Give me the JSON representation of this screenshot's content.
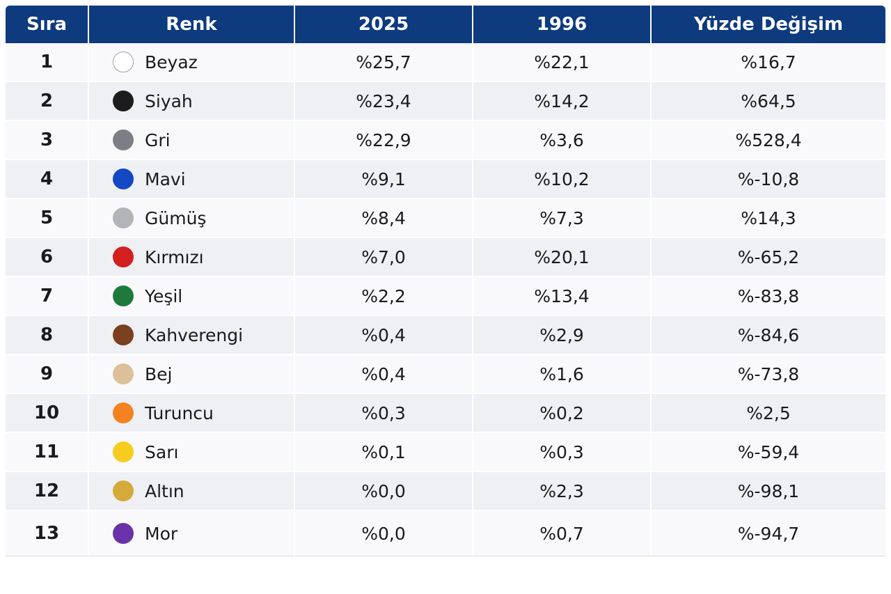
{
  "chart_data": {
    "type": "table",
    "columns": [
      "Sıra",
      "Renk",
      "2025",
      "1996",
      "Yüzde Değişim"
    ],
    "rows": [
      {
        "rank": "1",
        "color": "Beyaz",
        "swatch": "#ffffff",
        "outlined": true,
        "y2025": "%25,7",
        "y1996": "%22,1",
        "change": "%16,7"
      },
      {
        "rank": "2",
        "color": "Siyah",
        "swatch": "#1c1c1c",
        "outlined": false,
        "y2025": "%23,4",
        "y1996": "%14,2",
        "change": "%64,5"
      },
      {
        "rank": "3",
        "color": "Gri",
        "swatch": "#7b7f85",
        "outlined": false,
        "y2025": "%22,9",
        "y1996": "%3,6",
        "change": "%528,4"
      },
      {
        "rank": "4",
        "color": "Mavi",
        "swatch": "#1447c4",
        "outlined": false,
        "y2025": "%9,1",
        "y1996": "%10,2",
        "change": "%-10,8"
      },
      {
        "rank": "5",
        "color": "Gümüş",
        "swatch": "#b2b4b7",
        "outlined": false,
        "y2025": "%8,4",
        "y1996": "%7,3",
        "change": "%14,3"
      },
      {
        "rank": "6",
        "color": "Kırmızı",
        "swatch": "#d41f1f",
        "outlined": false,
        "y2025": "%7,0",
        "y1996": "%20,1",
        "change": "%-65,2"
      },
      {
        "rank": "7",
        "color": "Yeşil",
        "swatch": "#1d7a3a",
        "outlined": false,
        "y2025": "%2,2",
        "y1996": "%13,4",
        "change": "%-83,8"
      },
      {
        "rank": "8",
        "color": "Kahverengi",
        "swatch": "#7a4020",
        "outlined": false,
        "y2025": "%0,4",
        "y1996": "%2,9",
        "change": "%-84,6"
      },
      {
        "rank": "9",
        "color": "Bej",
        "swatch": "#dcc09a",
        "outlined": false,
        "y2025": "%0,4",
        "y1996": "%1,6",
        "change": "%-73,8"
      },
      {
        "rank": "10",
        "color": "Turuncu",
        "swatch": "#f58220",
        "outlined": false,
        "y2025": "%0,3",
        "y1996": "%0,2",
        "change": "%2,5"
      },
      {
        "rank": "11",
        "color": "Sarı",
        "swatch": "#f7cc1e",
        "outlined": false,
        "y2025": "%0,1",
        "y1996": "%0,3",
        "change": "%-59,4"
      },
      {
        "rank": "12",
        "color": "Altın",
        "swatch": "#d5a93a",
        "outlined": false,
        "y2025": "%0,0",
        "y1996": "%2,3",
        "change": "%-98,1"
      },
      {
        "rank": "13",
        "color": "Mor",
        "swatch": "#6a32a8",
        "outlined": false,
        "y2025": "%0,0",
        "y1996": "%0,7",
        "change": "%-94,7"
      }
    ],
    "header_color": "#0e3a7e"
  }
}
